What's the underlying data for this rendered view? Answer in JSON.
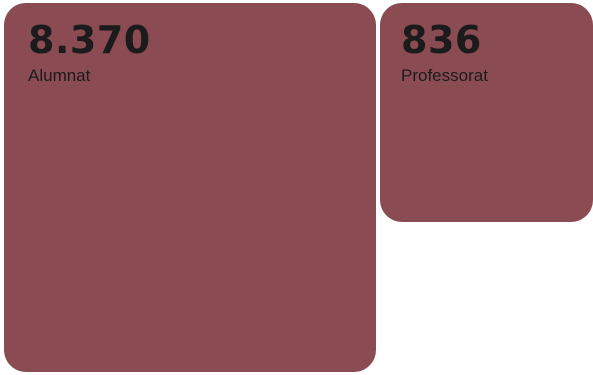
{
  "colors": {
    "tile_background": "#8a4b52",
    "text": "#1b1b1b",
    "page_background": "#ffffff"
  },
  "tiles": [
    {
      "value": "8.370",
      "label": "Alumnat"
    },
    {
      "value": "836",
      "label": "Professorat"
    }
  ]
}
